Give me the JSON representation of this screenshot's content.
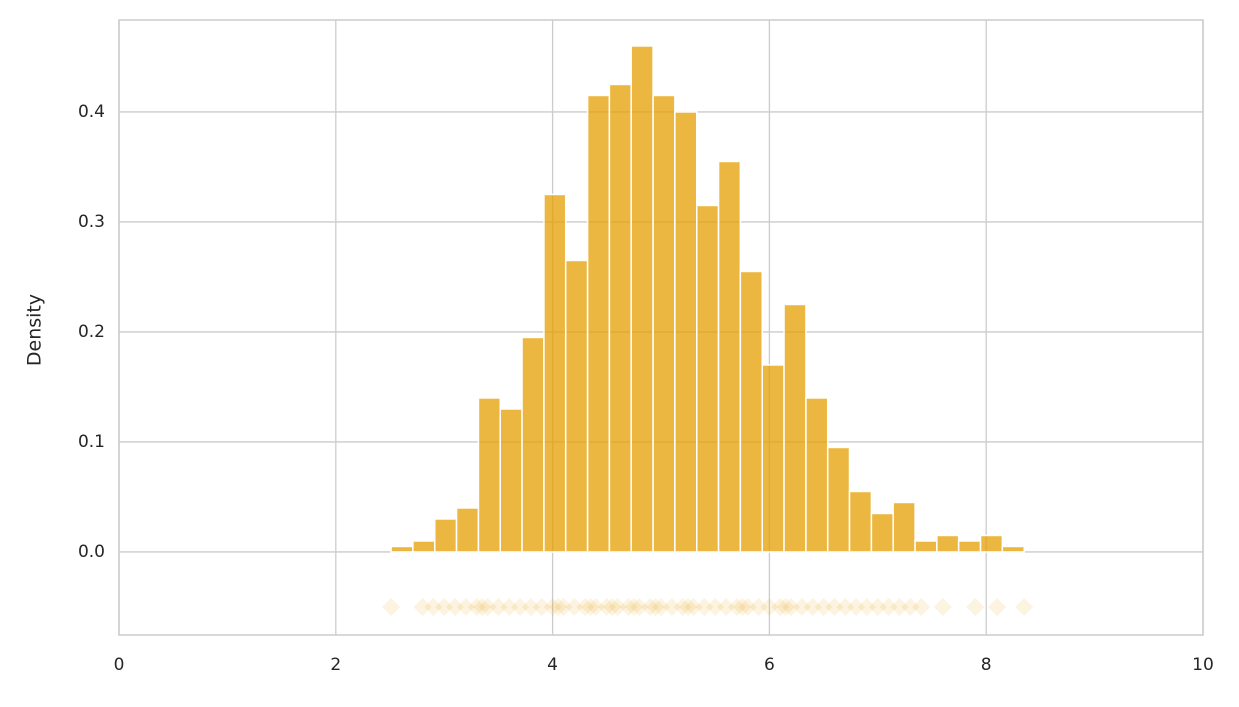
{
  "chart_data": {
    "type": "histogram",
    "ylabel": "Density",
    "bins": [
      2.51,
      2.711,
      2.913,
      3.114,
      3.316,
      3.517,
      3.718,
      3.92,
      4.121,
      4.323,
      4.524,
      4.725,
      4.927,
      5.128,
      5.33,
      5.531,
      5.732,
      5.934,
      6.135,
      6.337,
      6.538,
      6.739,
      6.941,
      7.142,
      7.344,
      7.545,
      7.746,
      7.948,
      8.149,
      8.351
    ],
    "values": [
      0.005,
      0.01,
      0.03,
      0.04,
      0.14,
      0.13,
      0.195,
      0.325,
      0.265,
      0.415,
      0.425,
      0.46,
      0.415,
      0.4,
      0.315,
      0.355,
      0.255,
      0.17,
      0.225,
      0.14,
      0.095,
      0.055,
      0.035,
      0.045,
      0.01,
      0.015,
      0.01,
      0.015,
      0.005
    ],
    "color": "#e69f00",
    "alpha": 0.75,
    "rug": {
      "y": -0.05,
      "alpha": 0.12,
      "x": [
        2.51,
        2.8,
        2.9,
        3.0,
        3.1,
        3.2,
        3.3,
        3.35,
        3.4,
        3.5,
        3.6,
        3.7,
        3.8,
        3.9,
        4.0,
        4.05,
        4.1,
        4.2,
        4.3,
        4.35,
        4.4,
        4.5,
        4.55,
        4.6,
        4.7,
        4.75,
        4.8,
        4.9,
        4.95,
        5.0,
        5.1,
        5.2,
        5.25,
        5.3,
        5.4,
        5.5,
        5.6,
        5.7,
        5.75,
        5.8,
        5.9,
        6.0,
        6.1,
        6.15,
        6.2,
        6.3,
        6.4,
        6.5,
        6.6,
        6.7,
        6.8,
        6.9,
        7.0,
        7.1,
        7.2,
        7.3,
        7.4,
        7.6,
        7.9,
        8.1,
        8.35
      ]
    },
    "xlim": [
      0,
      10
    ],
    "xticks": [
      0,
      2,
      4,
      6,
      8,
      10
    ],
    "ylim": [
      -0.0755,
      0.4836
    ],
    "yticks": [
      {
        "value": 0,
        "label": "0.0"
      },
      0.1,
      0.2,
      0.3,
      0.4
    ],
    "grid": true
  }
}
